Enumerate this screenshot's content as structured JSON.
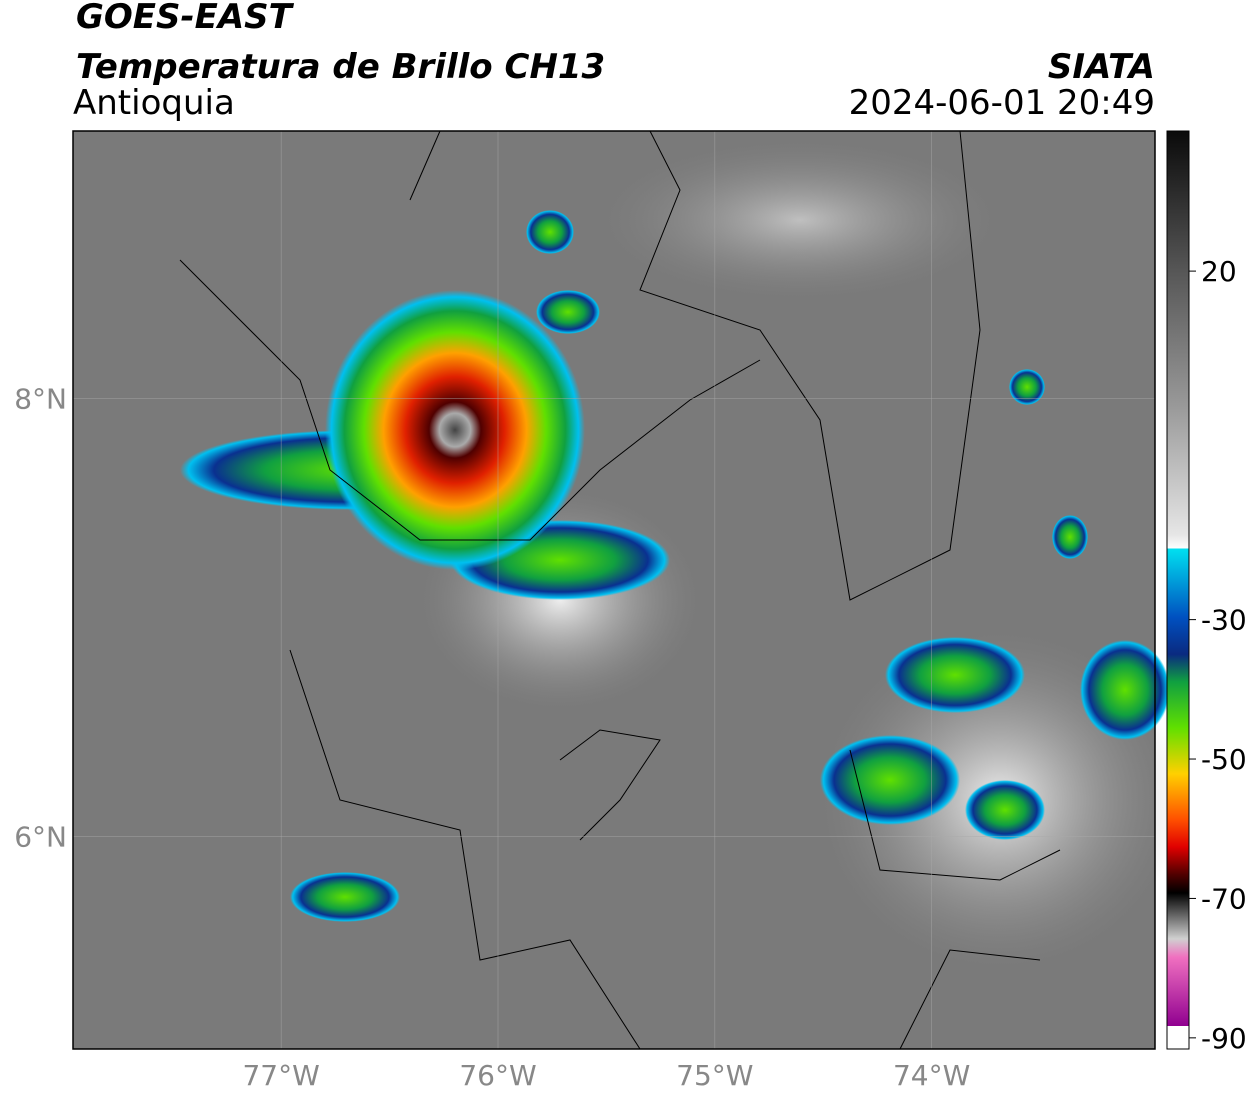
{
  "header": {
    "title": "GOES-EAST",
    "subtitle": "Temperatura de Brillo CH13",
    "region": "Antioquia",
    "source": "SIATA",
    "datetime": "2024-06-01 20:49"
  },
  "map": {
    "lon_range": [
      -77.96,
      -72.97
    ],
    "lat_range": [
      5.03,
      9.22
    ],
    "lon_ticks": [
      {
        "value": -77,
        "label": "77°W"
      },
      {
        "value": -76,
        "label": "76°W"
      },
      {
        "value": -75,
        "label": "75°W"
      },
      {
        "value": -74,
        "label": "74°W"
      }
    ],
    "lat_ticks": [
      {
        "value": 8,
        "label": "8°N"
      },
      {
        "value": 6,
        "label": "6°N"
      }
    ]
  },
  "colorbar": {
    "range": [
      -91.6,
      40.1
    ],
    "ticks": [
      20,
      -30,
      -50,
      -70,
      -90
    ]
  }
}
